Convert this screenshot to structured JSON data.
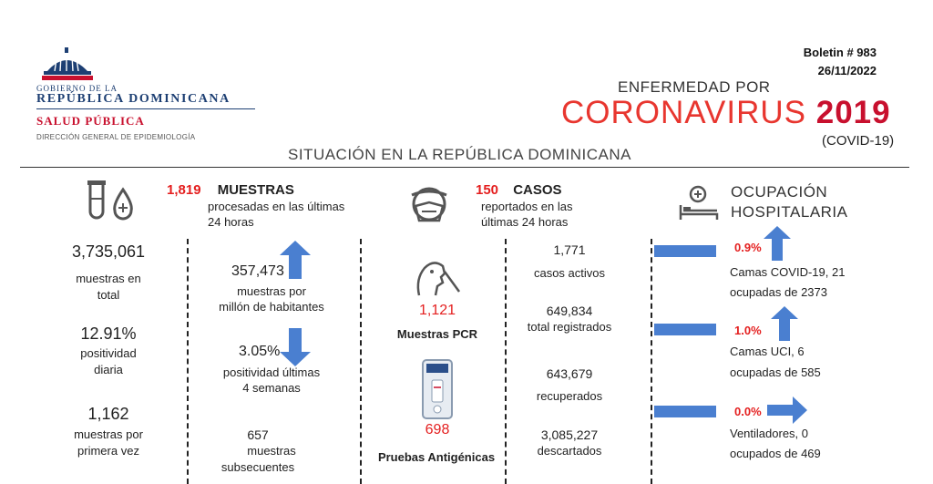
{
  "header": {
    "gov_line1": "GOBIERNO DE LA",
    "gov_line2": "REPÚBLICA DOMINICANA",
    "salud": "SALUD PÚBLICA",
    "direccion": "DIRECCIÓN GENERAL DE EPIDEMIOLOGÍA",
    "boletin": "Boletin # 983",
    "fecha": "26/11/2022",
    "enfermedad": "ENFERMEDAD POR",
    "coronavirus": "CORONAVIRUS",
    "year": "2019",
    "covid": "(COVID-19)",
    "situacion": "SITUACIÓN EN LA REPÚBLICA DOMINICANA"
  },
  "muestras": {
    "count_24h": "1,819",
    "title": "MUESTRAS",
    "sub1": "procesadas en las últimas",
    "sub2": "24 horas",
    "total_value": "3,735,061",
    "total_label1": "muestras en",
    "total_label2": "total",
    "positividad_value": "12.91%",
    "positividad_label1": "positividad",
    "positividad_label2": "diaria",
    "primera_value": "1,162",
    "primera_label1": "muestras por",
    "primera_label2": "primera vez",
    "per_million_value": "357,473",
    "per_million_label1": "muestras por",
    "per_million_label2": "millón de habitantes",
    "pos4_value": "3.05%",
    "pos4_label1": "positividad últimas",
    "pos4_label2": "4 semanas",
    "subsec_value": "657",
    "subsec_label1": "muestras",
    "subsec_label2": "subsecuentes"
  },
  "casos": {
    "count_24h": "150",
    "title": "CASOS",
    "sub1": "reportados en las",
    "sub2": "últimas 24 horas",
    "pcr_value": "1,121",
    "pcr_label": "Muestras PCR",
    "antigen_value": "698",
    "antigen_label": "Pruebas Antigénicas",
    "activos_value": "1,771",
    "activos_label": "casos activos",
    "registrados_value": "649,834",
    "registrados_label": "total registrados",
    "recuperados_value": "643,679",
    "recuperados_label": "recuperados",
    "descartados_value": "3,085,227",
    "descartados_label": "descartados"
  },
  "ocupacion": {
    "title1": "OCUPACIÓN",
    "title2": "HOSPITALARIA",
    "covid_pct": "0.9%",
    "covid_label1": "Camas COVID-19,  21",
    "covid_label2": "ocupadas de 2373",
    "uci_pct": "1.0%",
    "uci_label1": "Camas UCI,  6",
    "uci_label2": "ocupadas de 585",
    "vent_pct": "0.0%",
    "vent_label1": "Ventiladores, 0",
    "vent_label2": "ocupados de 469"
  },
  "colors": {
    "accent_blue": "#4a7fd0",
    "red": "#e41f1f",
    "navy": "#1d3f73"
  }
}
